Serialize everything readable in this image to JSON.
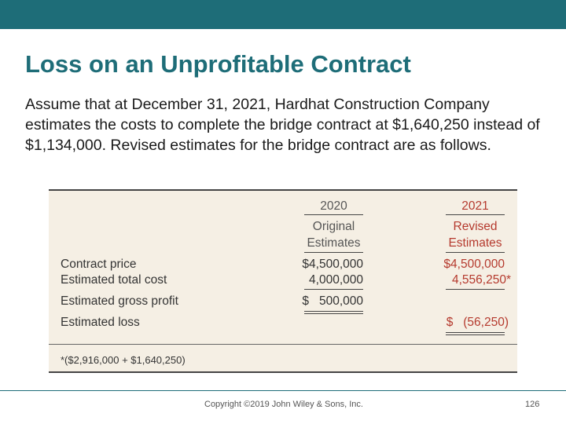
{
  "slide": {
    "title": "Loss on an Unprofitable Contract",
    "body": "Assume that at December 31, 2021, Hardhat Construction Company estimates the costs to complete the bridge contract at $1,640,250 instead of $1,134,000. Revised estimates for the bridge contract are as follows."
  },
  "table": {
    "col_2020": {
      "year": "2020",
      "line1": "Original",
      "line2": "Estimates"
    },
    "col_2021": {
      "year": "2021",
      "line1": "Revised",
      "line2": "Estimates"
    },
    "rows": [
      {
        "label": "Contract price",
        "v2020": "$4,500,000",
        "v2021": "$4,500,000"
      },
      {
        "label": "Estimated total cost",
        "v2020": "4,000,000",
        "v2021": "4,556,250*"
      },
      {
        "label": "Estimated gross profit",
        "v2020": "$   500,000",
        "v2021": ""
      },
      {
        "label": "Estimated loss",
        "v2020": "",
        "v2021": "$   (56,250)"
      }
    ],
    "footnote": "*($2,916,000 + $1,640,250)"
  },
  "footer": {
    "copyright": "Copyright ©2019 John Wiley & Sons, Inc.",
    "page_number": "126"
  },
  "colors": {
    "accent": "#1e6d78",
    "table_bg": "#f5efe4",
    "red_text": "#b53a2e"
  }
}
